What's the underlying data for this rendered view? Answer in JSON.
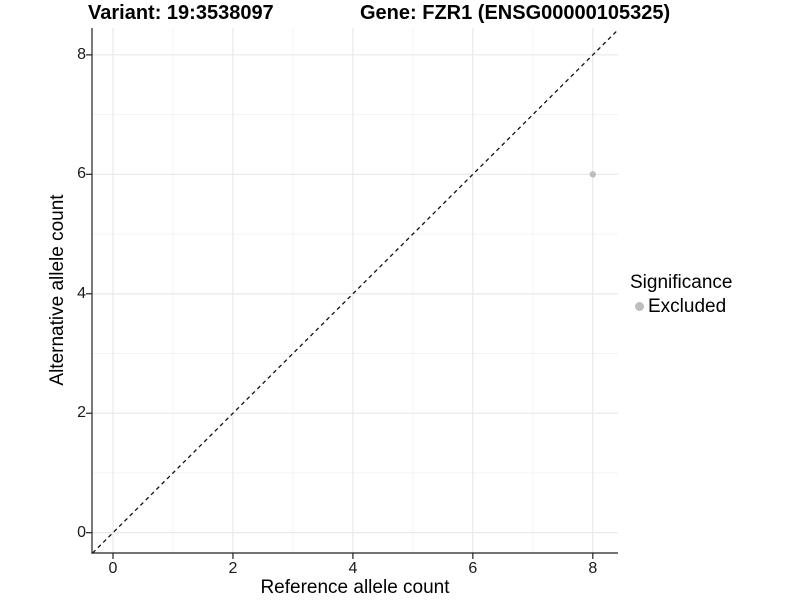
{
  "legend": {
    "title": "Significance",
    "items": [
      {
        "label": "Excluded",
        "color": "#bdbdbd"
      }
    ]
  },
  "colors": {
    "background": "#ffffff",
    "grid_major": "#e7e7e7",
    "grid_minor": "#f3f3f3",
    "axis_line": "#222222",
    "tick_mark": "#222222",
    "identity_line": "#111111",
    "point": "#bdbdbd",
    "text": "#000000"
  },
  "chart_data": {
    "type": "scatter",
    "titles": [
      "Variant: 19:3538097",
      "Gene: FZR1 (ENSG00000105325)"
    ],
    "xlabel": "Reference allele count",
    "ylabel": "Alternative allele count",
    "xlim": [
      -0.35,
      8.42
    ],
    "ylim": [
      -0.34,
      8.45
    ],
    "xticks": [
      0,
      2,
      4,
      6,
      8
    ],
    "yticks": [
      0,
      2,
      4,
      6,
      8
    ],
    "minor_xticks": [
      1,
      3,
      5,
      7
    ],
    "minor_yticks": [
      1,
      3,
      5,
      7
    ],
    "grid": "major+minor",
    "legend_position": "right-middle",
    "series": [
      {
        "name": "Excluded",
        "color": "#bdbdbd",
        "point_radius": 3.2,
        "points": [
          {
            "x": 8,
            "y": 6
          }
        ]
      }
    ],
    "reference_line": {
      "kind": "identity y=x",
      "style": "dashed",
      "color": "#111111"
    }
  }
}
